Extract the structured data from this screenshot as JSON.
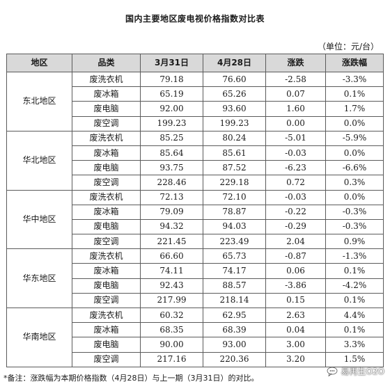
{
  "title": "国内主要地区废电视价格指数对比表",
  "unit": "（单位：元/台）",
  "headers": [
    "地区",
    "品类",
    "3月31日",
    "4月28日",
    "涨跌",
    "涨跌幅"
  ],
  "regions": [
    {
      "name": "东北地区",
      "rows": [
        [
          "废洗衣机",
          "79.18",
          "76.60",
          "-2.58",
          "-3.3%"
        ],
        [
          "废冰箱",
          "65.19",
          "65.26",
          "0.07",
          "0.1%"
        ],
        [
          "废电脑",
          "92.00",
          "93.60",
          "1.60",
          "1.7%"
        ],
        [
          "废空调",
          "199.23",
          "199.23",
          "0.00",
          "0.0%"
        ]
      ]
    },
    {
      "name": "华北地区",
      "rows": [
        [
          "废洗衣机",
          "85.25",
          "80.24",
          "-5.01",
          "-5.9%"
        ],
        [
          "废冰箱",
          "85.64",
          "85.61",
          "-0.03",
          "0.0%"
        ],
        [
          "废电脑",
          "93.75",
          "87.52",
          "-6.23",
          "-6.6%"
        ],
        [
          "废空调",
          "228.46",
          "229.18",
          "0.72",
          "0.3%"
        ]
      ]
    },
    {
      "name": "华中地区",
      "rows": [
        [
          "废洗衣机",
          "72.13",
          "72.10",
          "-0.03",
          "0.0%"
        ],
        [
          "废冰箱",
          "79.09",
          "78.87",
          "-0.22",
          "-0.3%"
        ],
        [
          "废电脑",
          "94.32",
          "94.03",
          "-0.29",
          "-0.3%"
        ],
        [
          "废空调",
          "221.45",
          "223.49",
          "2.04",
          "0.9%"
        ]
      ]
    },
    {
      "name": "华东地区",
      "rows": [
        [
          "废洗衣机",
          "66.60",
          "65.73",
          "-0.87",
          "-1.3%"
        ],
        [
          "废冰箱",
          "74.11",
          "74.17",
          "0.06",
          "0.1%"
        ],
        [
          "废电脑",
          "92.43",
          "88.57",
          "-3.86",
          "-4.2%"
        ],
        [
          "废空调",
          "217.99",
          "218.14",
          "0.15",
          "0.1%"
        ]
      ]
    },
    {
      "name": "华南地区",
      "rows": [
        [
          "废洗衣机",
          "60.32",
          "62.95",
          "2.63",
          "4.4%"
        ],
        [
          "废冰箱",
          "68.35",
          "68.39",
          "0.04",
          "0.1%"
        ],
        [
          "废电脑",
          "90.00",
          "93.00",
          "3.00",
          "3.3%"
        ],
        [
          "废空调",
          "217.16",
          "220.36",
          "3.20",
          "1.5%"
        ]
      ]
    }
  ],
  "footnote": "*备注：涨跌幅为本期价格指数（4月28日）与上一期（3月31日）的对比。",
  "watermark": "易再生O2O",
  "colors": {
    "header_bg": "#d9d9d9",
    "border": "#5a5a5a"
  },
  "icons": {
    "watermark": "chat-bubble-icon"
  }
}
